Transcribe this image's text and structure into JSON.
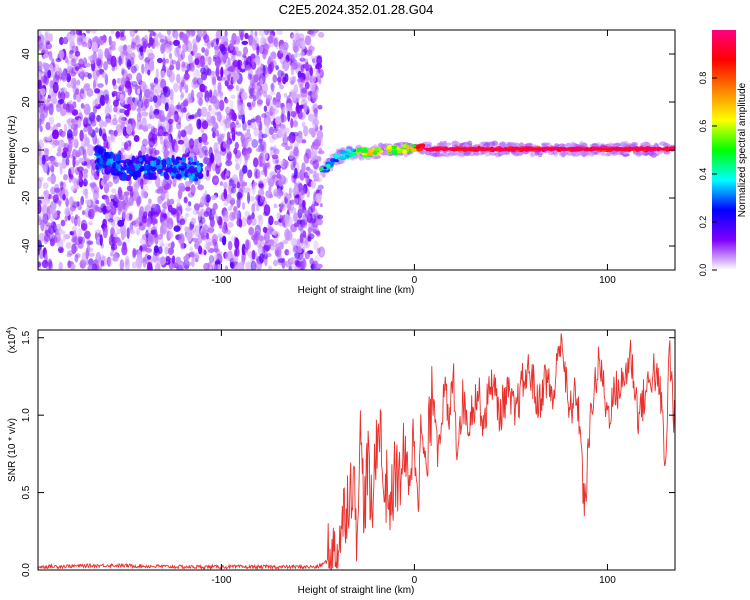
{
  "title": "C2E5.2024.352.01.28.G04",
  "chart_data": [
    {
      "type": "heatmap",
      "xlabel": "Height of straight line (km)",
      "ylabel": "Frequency (Hz)",
      "xlim": [
        -195,
        135
      ],
      "ylim": [
        -50,
        50
      ],
      "xticks": [
        -100,
        0,
        100
      ],
      "xtick_labels": [
        "-100",
        "0",
        "100"
      ],
      "yticks": [
        -40,
        -20,
        0,
        20,
        40
      ],
      "ytick_labels": [
        "-40",
        "-20",
        "0",
        "20",
        "40"
      ],
      "grid": false,
      "noise_region_x": [
        -195,
        -48
      ],
      "signal_curve": {
        "x": [
          -48,
          -44,
          -40,
          -35,
          -30,
          -25,
          -20,
          -15,
          -10,
          -5,
          0,
          5,
          10,
          20,
          40,
          60,
          80,
          100,
          120,
          135
        ],
        "y": [
          -9,
          -6,
          -3,
          -1.5,
          -1,
          -0.8,
          -0.6,
          -0.3,
          0,
          0.3,
          1,
          0.5,
          0.4,
          0.4,
          0.4,
          0.4,
          0.4,
          0.4,
          0.4,
          0.4
        ]
      },
      "noise_band": {
        "x": [
          -165,
          -150,
          -140,
          -130,
          -120,
          -110
        ],
        "y": [
          -3,
          -8,
          -7,
          -8,
          -7,
          -9
        ]
      },
      "colorbar": {
        "label": "Normalized spectral amplitude",
        "range": [
          0,
          1
        ],
        "ticks": [
          0.0,
          0.2,
          0.4,
          0.6,
          0.8
        ],
        "tick_labels": [
          "0.0",
          "0.2",
          "0.4",
          "0.6",
          "0.8"
        ],
        "colors": [
          "#ffffff",
          "#7f00ff",
          "#0000ff",
          "#00ffff",
          "#00ff00",
          "#ffff00",
          "#ff8000",
          "#ff0000",
          "#ff0080"
        ]
      }
    },
    {
      "type": "line",
      "xlabel": "Height of straight line (km)",
      "ylabel": "SNR (10 * v/v)",
      "y_multiplier_label": "(x10",
      "y_multiplier_exp": "4",
      "y_multiplier_close": ")",
      "xlim": [
        -195,
        135
      ],
      "ylim": [
        0,
        1.55
      ],
      "xticks": [
        -100,
        0,
        100
      ],
      "xtick_labels": [
        "-100",
        "0",
        "100"
      ],
      "yticks": [
        0.0,
        0.5,
        1.0,
        1.5
      ],
      "ytick_labels": [
        "0.0",
        "0.5",
        "1.0",
        "1.5"
      ],
      "grid": false,
      "series": [
        {
          "color": "#e8302c",
          "x": [
            -195,
            -160,
            -120,
            -80,
            -50,
            -42,
            -38,
            -35,
            -32,
            -30,
            -28,
            -26,
            -24,
            -22,
            -20,
            -18,
            -16,
            -14,
            -12,
            -10,
            -8,
            -6,
            -4,
            -2,
            0,
            2,
            4,
            6,
            8,
            10,
            12,
            14,
            16,
            18,
            20,
            22,
            25,
            28,
            30,
            33,
            36,
            40,
            44,
            48,
            52,
            56,
            60,
            64,
            68,
            72,
            76,
            80,
            84,
            86,
            88,
            92,
            96,
            100,
            104,
            108,
            112,
            116,
            120,
            124,
            128,
            130,
            132,
            135
          ],
          "y": [
            0.02,
            0.03,
            0.02,
            0.02,
            0.02,
            0.08,
            0.25,
            0.45,
            0.6,
            0.3,
            0.85,
            0.4,
            0.7,
            0.3,
            0.8,
            1.0,
            0.5,
            0.55,
            0.4,
            0.65,
            0.55,
            0.75,
            0.6,
            0.7,
            0.85,
            0.6,
            0.9,
            0.55,
            0.95,
            1.2,
            0.8,
            1.0,
            1.15,
            0.9,
            1.3,
            0.8,
            1.1,
            0.95,
            1.05,
            1.15,
            0.95,
            1.25,
            1.0,
            1.15,
            1.0,
            1.2,
            1.3,
            1.05,
            1.25,
            1.1,
            1.55,
            1.0,
            1.15,
            0.9,
            0.37,
            1.1,
            1.35,
            1.0,
            1.15,
            1.2,
            1.4,
            1.0,
            1.15,
            1.3,
            1.1,
            0.6,
            1.45,
            0.9
          ]
        }
      ]
    }
  ]
}
